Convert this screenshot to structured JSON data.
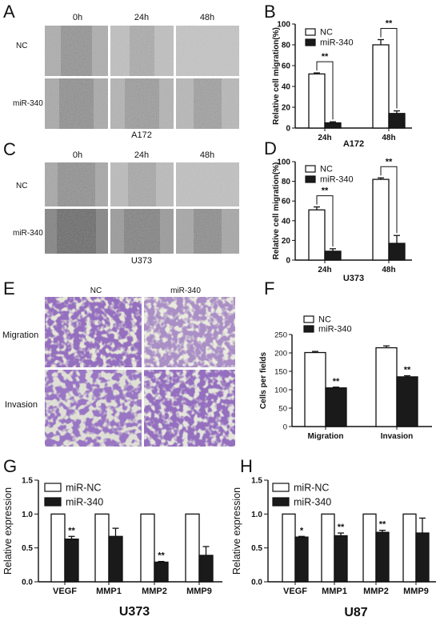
{
  "panels": {
    "A": {
      "letter": "A",
      "times": [
        "0h",
        "24h",
        "48h"
      ],
      "rows": [
        "NC",
        "miR-340"
      ],
      "cell_line": "A172"
    },
    "C": {
      "letter": "C",
      "times": [
        "0h",
        "24h",
        "48h"
      ],
      "rows": [
        "NC",
        "miR-340"
      ],
      "cell_line": "U373"
    },
    "E": {
      "letter": "E",
      "cols": [
        "NC",
        "miR-340"
      ],
      "rows": [
        "Migration",
        "Invasion"
      ]
    },
    "B": {
      "letter": "B"
    },
    "D": {
      "letter": "D"
    },
    "F": {
      "letter": "F"
    },
    "G": {
      "letter": "G"
    },
    "H": {
      "letter": "H"
    }
  },
  "chart_data": [
    {
      "id": "B",
      "type": "bar",
      "categories": [
        "24h",
        "48h"
      ],
      "series": [
        {
          "name": "NC",
          "values": [
            52,
            80
          ],
          "errors": [
            1,
            5
          ],
          "color": "#ffffff"
        },
        {
          "name": "miR-340",
          "values": [
            5,
            14
          ],
          "errors": [
            1,
            2.5
          ],
          "color": "#1a1a1a"
        }
      ],
      "ylabel": "Relative cell migration(%)",
      "xlabel": "A172",
      "ylim": [
        0,
        100
      ],
      "yticks": [
        0,
        20,
        40,
        60,
        80,
        100
      ],
      "significance": [
        "**",
        "**"
      ],
      "legend": "top-left"
    },
    {
      "id": "D",
      "type": "bar",
      "categories": [
        "24h",
        "48h"
      ],
      "series": [
        {
          "name": "NC",
          "values": [
            51,
            82
          ],
          "errors": [
            3,
            1.5
          ],
          "color": "#ffffff"
        },
        {
          "name": "miR-340",
          "values": [
            9,
            17
          ],
          "errors": [
            2.5,
            8
          ],
          "color": "#1a1a1a"
        }
      ],
      "ylabel": "Relative cell migration(%)",
      "xlabel": "U373",
      "ylim": [
        0,
        100
      ],
      "yticks": [
        0,
        20,
        40,
        60,
        80,
        100
      ],
      "significance": [
        "**",
        "**"
      ],
      "legend": "top-left"
    },
    {
      "id": "F",
      "type": "bar",
      "categories": [
        "Migration",
        "Invasion"
      ],
      "series": [
        {
          "name": "NC",
          "values": [
            201,
            214
          ],
          "errors": [
            3,
            5
          ],
          "color": "#ffffff"
        },
        {
          "name": "miR-340",
          "values": [
            105,
            135
          ],
          "errors": [
            2,
            3
          ],
          "color": "#1a1a1a"
        }
      ],
      "ylabel": "Cells per fields",
      "xlabel": "",
      "ylim": [
        0,
        250
      ],
      "yticks": [
        0,
        50,
        100,
        150,
        200,
        250
      ],
      "significance": [
        "**",
        "**"
      ],
      "legend": "top-left"
    },
    {
      "id": "G",
      "type": "bar",
      "categories": [
        "VEGF",
        "MMP1",
        "MMP2",
        "MMP9"
      ],
      "series": [
        {
          "name": "miR-NC",
          "values": [
            1.0,
            1.0,
            1.0,
            1.0
          ],
          "errors": [
            0,
            0,
            0,
            0
          ],
          "color": "#ffffff"
        },
        {
          "name": "miR-340",
          "values": [
            0.63,
            0.67,
            0.29,
            0.39
          ],
          "errors": [
            0.04,
            0.12,
            0.01,
            0.13
          ],
          "color": "#1a1a1a"
        }
      ],
      "ylabel": "Relative expression",
      "xlabel": "U373",
      "ylim": [
        0,
        1.5
      ],
      "yticks": [
        0.0,
        0.5,
        1.0,
        1.5
      ],
      "ytick_labels": [
        "0.0",
        "0.5",
        "1.0",
        "1.5"
      ],
      "significance": [
        "**",
        "",
        "**",
        ""
      ],
      "legend": "top-left"
    },
    {
      "id": "H",
      "type": "bar",
      "categories": [
        "VEGF",
        "MMP1",
        "MMP2",
        "MMP9"
      ],
      "series": [
        {
          "name": "miR-NC",
          "values": [
            1.0,
            1.0,
            1.0,
            1.0
          ],
          "errors": [
            0,
            0,
            0,
            0
          ],
          "color": "#ffffff"
        },
        {
          "name": "miR-340",
          "values": [
            0.66,
            0.68,
            0.73,
            0.72
          ],
          "errors": [
            0.01,
            0.04,
            0.03,
            0.22
          ],
          "color": "#1a1a1a"
        }
      ],
      "ylabel": "Relative expression",
      "xlabel": "U87",
      "ylim": [
        0,
        1.5
      ],
      "yticks": [
        0.0,
        0.5,
        1.0,
        1.5
      ],
      "ytick_labels": [
        "0.0",
        "0.5",
        "1.0",
        "1.5"
      ],
      "significance": [
        "*",
        "**",
        "**",
        ""
      ],
      "legend": "top-left"
    }
  ]
}
